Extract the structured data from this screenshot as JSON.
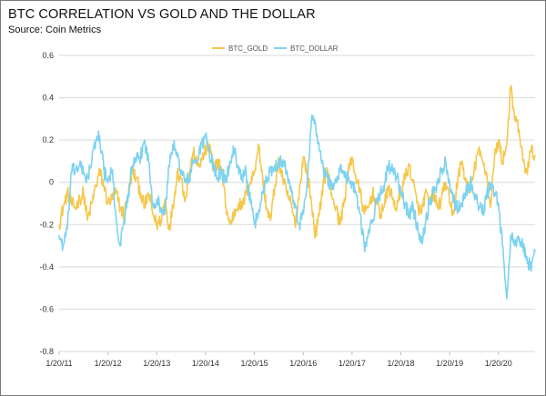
{
  "header": {
    "title": "BTC CORRELATION VS GOLD AND THE DOLLAR",
    "subtitle": "Source: Coin Metrics"
  },
  "chart_data": {
    "type": "line",
    "title": "BTC CORRELATION VS GOLD AND THE DOLLAR",
    "subtitle": "Source: Coin Metrics",
    "xlabel": "",
    "ylabel": "",
    "ylim": [
      -0.8,
      0.6
    ],
    "yticks": [
      -0.8,
      -0.6,
      -0.4,
      -0.2,
      0,
      0.2,
      0.4,
      0.6
    ],
    "ytick_labels": [
      "-0.8",
      "-0.6",
      "-0.4",
      "-0.2",
      "0",
      "0.2",
      "0.4",
      "0.6"
    ],
    "xlim": [
      2011.0,
      2020.75
    ],
    "xticks": [
      2011,
      2012,
      2013,
      2014,
      2015,
      2016,
      2017,
      2018,
      2019,
      2020
    ],
    "xtick_labels": [
      "1/20/11",
      "1/20/12",
      "1/20/13",
      "1/20/14",
      "1/20/15",
      "1/20/16",
      "1/20/17",
      "1/20/18",
      "1/20/19",
      "1/20/20"
    ],
    "grid": "horizontal",
    "legend": "top-center",
    "series": [
      {
        "name": "BTC_GOLD",
        "color": "#F5C84C",
        "x": [
          2011.0,
          2011.08,
          2011.17,
          2011.25,
          2011.33,
          2011.42,
          2011.5,
          2011.58,
          2011.67,
          2011.75,
          2011.83,
          2011.92,
          2012.0,
          2012.08,
          2012.17,
          2012.25,
          2012.33,
          2012.42,
          2012.5,
          2012.58,
          2012.67,
          2012.75,
          2012.83,
          2012.92,
          2013.0,
          2013.08,
          2013.17,
          2013.25,
          2013.33,
          2013.42,
          2013.5,
          2013.58,
          2013.67,
          2013.75,
          2013.83,
          2013.92,
          2014.0,
          2014.08,
          2014.17,
          2014.25,
          2014.33,
          2014.42,
          2014.5,
          2014.58,
          2014.67,
          2014.75,
          2014.83,
          2014.92,
          2015.0,
          2015.08,
          2015.17,
          2015.25,
          2015.33,
          2015.42,
          2015.5,
          2015.58,
          2015.67,
          2015.75,
          2015.83,
          2015.92,
          2016.0,
          2016.08,
          2016.17,
          2016.25,
          2016.33,
          2016.42,
          2016.5,
          2016.58,
          2016.67,
          2016.75,
          2016.83,
          2016.92,
          2017.0,
          2017.08,
          2017.17,
          2017.25,
          2017.33,
          2017.42,
          2017.5,
          2017.58,
          2017.67,
          2017.75,
          2017.83,
          2017.92,
          2018.0,
          2018.08,
          2018.17,
          2018.25,
          2018.33,
          2018.42,
          2018.5,
          2018.58,
          2018.67,
          2018.75,
          2018.83,
          2018.92,
          2019.0,
          2019.08,
          2019.17,
          2019.25,
          2019.33,
          2019.42,
          2019.5,
          2019.58,
          2019.67,
          2019.75,
          2019.83,
          2019.92,
          2020.0,
          2020.08,
          2020.17,
          2020.25,
          2020.33,
          2020.42,
          2020.5,
          2020.58,
          2020.67,
          2020.75
        ],
        "y": [
          -0.2,
          -0.12,
          -0.05,
          -0.1,
          -0.12,
          -0.08,
          -0.05,
          -0.18,
          -0.1,
          -0.02,
          0.05,
          -0.02,
          -0.1,
          -0.08,
          -0.05,
          -0.12,
          -0.15,
          -0.05,
          0.05,
          0.02,
          -0.05,
          -0.12,
          -0.05,
          -0.15,
          -0.2,
          -0.18,
          -0.08,
          -0.22,
          -0.12,
          0.05,
          0.02,
          -0.08,
          0.05,
          0.14,
          0.08,
          0.1,
          0.15,
          0.18,
          0.05,
          0.1,
          0.06,
          -0.12,
          -0.2,
          -0.15,
          -0.1,
          -0.12,
          -0.05,
          0.0,
          0.05,
          0.18,
          0.02,
          -0.12,
          -0.18,
          -0.02,
          0.1,
          0.02,
          -0.06,
          -0.1,
          -0.2,
          -0.05,
          0.12,
          0.05,
          -0.1,
          -0.25,
          -0.15,
          0.02,
          0.05,
          -0.05,
          -0.12,
          -0.2,
          -0.1,
          0.04,
          0.12,
          0.02,
          -0.05,
          -0.15,
          -0.12,
          -0.05,
          -0.1,
          -0.15,
          -0.1,
          -0.02,
          -0.08,
          -0.12,
          -0.05,
          0.02,
          0.08,
          0.0,
          -0.1,
          -0.15,
          -0.05,
          -0.1,
          -0.05,
          -0.12,
          -0.08,
          0.0,
          -0.1,
          -0.15,
          0.02,
          0.1,
          0.0,
          -0.05,
          0.05,
          0.15,
          0.1,
          0.05,
          -0.12,
          0.12,
          0.2,
          0.1,
          0.18,
          0.45,
          0.3,
          0.25,
          0.1,
          0.05,
          0.15,
          0.13
        ]
      },
      {
        "name": "BTC_DOLLAR",
        "color": "#7DD3F0",
        "x": [
          2011.0,
          2011.08,
          2011.17,
          2011.25,
          2011.33,
          2011.42,
          2011.5,
          2011.58,
          2011.67,
          2011.75,
          2011.83,
          2011.92,
          2012.0,
          2012.08,
          2012.17,
          2012.25,
          2012.33,
          2012.42,
          2012.5,
          2012.58,
          2012.67,
          2012.75,
          2012.83,
          2012.92,
          2013.0,
          2013.08,
          2013.17,
          2013.25,
          2013.33,
          2013.42,
          2013.5,
          2013.58,
          2013.67,
          2013.75,
          2013.83,
          2013.92,
          2014.0,
          2014.08,
          2014.17,
          2014.25,
          2014.33,
          2014.42,
          2014.5,
          2014.58,
          2014.67,
          2014.75,
          2014.83,
          2014.92,
          2015.0,
          2015.08,
          2015.17,
          2015.25,
          2015.33,
          2015.42,
          2015.5,
          2015.58,
          2015.67,
          2015.75,
          2015.83,
          2015.92,
          2016.0,
          2016.08,
          2016.17,
          2016.25,
          2016.33,
          2016.42,
          2016.5,
          2016.58,
          2016.67,
          2016.75,
          2016.83,
          2016.92,
          2017.0,
          2017.08,
          2017.17,
          2017.25,
          2017.33,
          2017.42,
          2017.5,
          2017.58,
          2017.67,
          2017.75,
          2017.83,
          2017.92,
          2018.0,
          2018.08,
          2018.17,
          2018.25,
          2018.33,
          2018.42,
          2018.5,
          2018.58,
          2018.67,
          2018.75,
          2018.83,
          2018.92,
          2019.0,
          2019.08,
          2019.17,
          2019.25,
          2019.33,
          2019.42,
          2019.5,
          2019.58,
          2019.67,
          2019.75,
          2019.83,
          2019.92,
          2020.0,
          2020.08,
          2020.17,
          2020.25,
          2020.33,
          2020.42,
          2020.5,
          2020.58,
          2020.67,
          2020.75
        ],
        "y": [
          -0.25,
          -0.3,
          -0.22,
          0.05,
          0.06,
          0.08,
          0.04,
          0.02,
          0.1,
          0.2,
          0.22,
          0.05,
          0.0,
          0.06,
          -0.18,
          -0.3,
          -0.18,
          -0.05,
          0.08,
          0.1,
          0.12,
          0.2,
          0.1,
          -0.1,
          -0.08,
          -0.12,
          -0.15,
          0.08,
          0.18,
          0.12,
          0.06,
          0.0,
          0.02,
          0.1,
          0.1,
          0.18,
          0.22,
          0.12,
          0.08,
          0.02,
          0.05,
          0.0,
          0.1,
          0.15,
          0.08,
          0.02,
          0.05,
          -0.1,
          -0.2,
          -0.15,
          -0.05,
          0.02,
          0.05,
          0.08,
          0.1,
          0.1,
          0.05,
          -0.02,
          -0.1,
          -0.2,
          -0.15,
          0.0,
          0.3,
          0.28,
          0.15,
          0.05,
          0.02,
          -0.02,
          0.0,
          0.05,
          0.05,
          0.02,
          0.0,
          -0.05,
          -0.15,
          -0.3,
          -0.25,
          -0.18,
          -0.1,
          -0.05,
          0.0,
          0.08,
          0.05,
          0.02,
          -0.05,
          -0.1,
          -0.15,
          -0.12,
          -0.2,
          -0.28,
          -0.2,
          -0.1,
          -0.05,
          0.0,
          0.05,
          0.1,
          0.0,
          -0.08,
          -0.12,
          -0.1,
          -0.05,
          0.0,
          -0.05,
          -0.1,
          -0.15,
          -0.08,
          0.0,
          -0.05,
          -0.1,
          -0.3,
          -0.55,
          -0.25,
          -0.3,
          -0.28,
          -0.3,
          -0.35,
          -0.42,
          -0.33
        ]
      }
    ]
  }
}
